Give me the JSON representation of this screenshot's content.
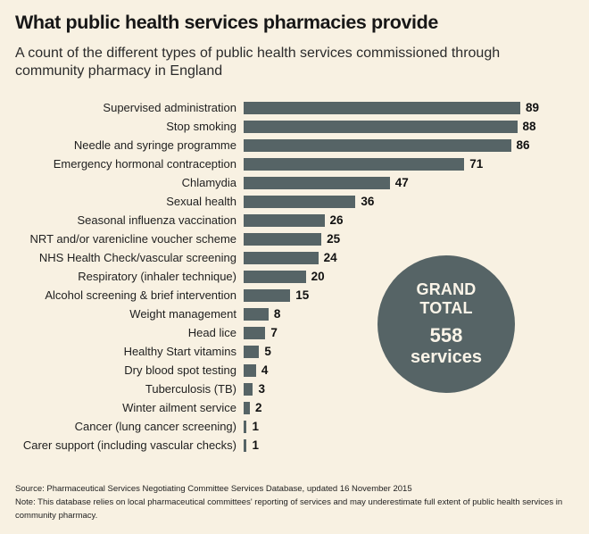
{
  "title": "What public health services pharmacies provide",
  "subtitle": "A count of the different types of public health services commissioned through community pharmacy in England",
  "grand_total": {
    "label": "GRAND TOTAL",
    "value": "558",
    "unit": "services"
  },
  "footer": {
    "source": "Source: Pharmaceutical Services Negotiating Committee Services Database, updated 16 November 2015",
    "note": "Note: This database relies on local pharmaceutical committees' reporting of services and may underestimate full extent of public health services in community pharmacy."
  },
  "colors": {
    "background": "#f8f1e2",
    "bar": "#566466",
    "circle": "#566466",
    "circle_text": "#faf4e8",
    "title_text": "#171717",
    "body_text": "#2b2b2b"
  },
  "chart_data": {
    "type": "bar",
    "orientation": "horizontal",
    "title": "What public health services pharmacies provide",
    "subtitle": "A count of the different types of public health services commissioned through community pharmacy in England",
    "xlabel": "",
    "ylabel": "",
    "xlim": [
      0,
      95
    ],
    "grid": false,
    "legend": false,
    "value_labels": true,
    "categories": [
      "Supervised administration",
      "Stop smoking",
      "Needle and syringe programme",
      "Emergency hormonal contraception",
      "Chlamydia",
      "Sexual health",
      "Seasonal influenza vaccination",
      "NRT and/or varenicline voucher scheme",
      "NHS Health Check/vascular screening",
      "Respiratory (inhaler technique)",
      "Alcohol screening & brief intervention",
      "Weight management",
      "Head lice",
      "Healthy Start vitamins",
      "Dry blood spot testing",
      "Tuberculosis (TB)",
      "Winter ailment service",
      "Cancer (lung cancer screening)",
      "Carer support (including vascular checks)"
    ],
    "values": [
      89,
      88,
      86,
      71,
      47,
      36,
      26,
      25,
      24,
      20,
      15,
      8,
      7,
      5,
      4,
      3,
      2,
      1,
      1
    ],
    "annotations": [
      "GRAND TOTAL 558 services"
    ]
  }
}
